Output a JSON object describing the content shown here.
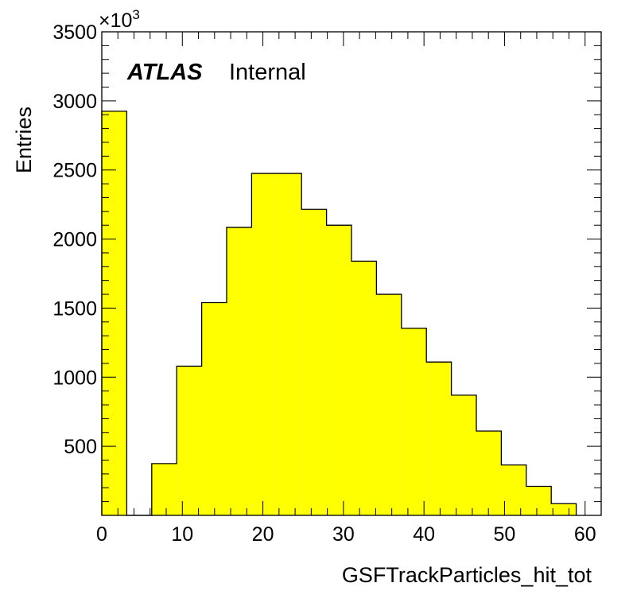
{
  "chart_data": {
    "type": "bar",
    "xlabel": "GSFTrackParticles_hit_tot",
    "ylabel": "Entries",
    "y_multiplier": "×10",
    "y_multiplier_exponent": "3",
    "experiment_label": "ATLAS",
    "status_label": "Internal",
    "xlim": [
      0,
      62
    ],
    "ylim": [
      0,
      3500
    ],
    "x_ticks": [
      0,
      10,
      20,
      30,
      40,
      50,
      60
    ],
    "x_tick_labels": [
      "0",
      "10",
      "20",
      "30",
      "40",
      "50",
      "60"
    ],
    "y_ticks": [
      500,
      1000,
      1500,
      2000,
      2500,
      3000,
      3500
    ],
    "y_tick_labels": [
      "500",
      "1000",
      "1500",
      "2000",
      "2500",
      "3000",
      "3500"
    ],
    "bin_edges": [
      0,
      3.1,
      6.2,
      9.3,
      12.4,
      15.5,
      18.6,
      21.7,
      24.8,
      27.9,
      31.0,
      34.1,
      37.2,
      40.3,
      43.4,
      46.5,
      49.6,
      52.7,
      55.8,
      58.9
    ],
    "values": [
      2925,
      0,
      375,
      1080,
      1540,
      2085,
      2475,
      2475,
      2215,
      2100,
      1840,
      1600,
      1355,
      1110,
      870,
      610,
      365,
      210,
      85
    ],
    "fill_color": "#ffff00",
    "line_color": "#000000",
    "grid": false,
    "legend": "none"
  }
}
